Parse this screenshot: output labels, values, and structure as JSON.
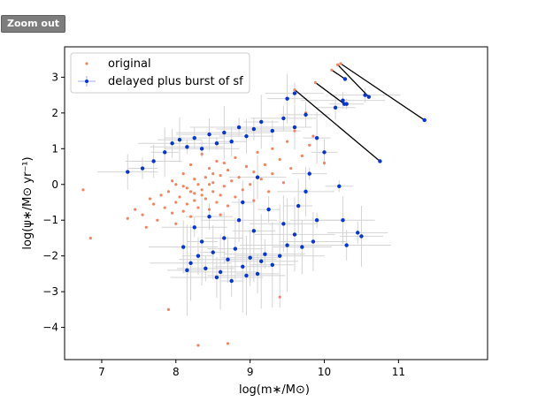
{
  "toolbar": {
    "zoom_out_label": "Zoom out"
  },
  "chart_data": {
    "type": "scatter",
    "xlabel": "log(m∗/M⊙)",
    "ylabel": "log(ψ∗/M⊙ yr⁻¹)",
    "xlim": [
      6.5,
      12.2
    ],
    "ylim": [
      -4.9,
      3.85
    ],
    "xticks": [
      7,
      8,
      9,
      10,
      11
    ],
    "yticks": [
      -4,
      -3,
      -2,
      -1,
      0,
      1,
      2,
      3
    ],
    "xtick_labels": [
      "7",
      "8",
      "9",
      "10",
      "11"
    ],
    "ytick_labels": [
      "−4",
      "−3",
      "−2",
      "−1",
      "0",
      "1",
      "2",
      "3"
    ],
    "grid": false,
    "legend_position": "top-left",
    "colors": {
      "original": "#f4845f",
      "delayed": "#0535d6",
      "errorbar": "#d4d4d4",
      "connector": "#000000"
    },
    "series": [
      {
        "name": "original",
        "points": [
          [
            6.75,
            -0.15
          ],
          [
            6.85,
            -1.5
          ],
          [
            7.35,
            -0.95
          ],
          [
            7.45,
            -0.7
          ],
          [
            7.55,
            -0.85
          ],
          [
            7.6,
            -1.2
          ],
          [
            7.65,
            -0.4
          ],
          [
            7.7,
            -0.55
          ],
          [
            7.75,
            -1.0
          ],
          [
            7.8,
            -0.3
          ],
          [
            7.85,
            -0.65
          ],
          [
            7.9,
            -0.2
          ],
          [
            7.95,
            -0.8
          ],
          [
            7.95,
            0.1
          ],
          [
            8.0,
            -0.5
          ],
          [
            8.0,
            -1.1
          ],
          [
            8.05,
            -0.35
          ],
          [
            8.1,
            0.3
          ],
          [
            8.1,
            -0.75
          ],
          [
            8.15,
            -0.1
          ],
          [
            8.15,
            -0.55
          ],
          [
            8.2,
            -0.9
          ],
          [
            8.2,
            0.55
          ],
          [
            8.25,
            -0.25
          ],
          [
            8.25,
            -0.45
          ],
          [
            8.3,
            0.0
          ],
          [
            8.3,
            -0.65
          ],
          [
            8.35,
            -0.15
          ],
          [
            8.35,
            0.85
          ],
          [
            8.4,
            -0.4
          ],
          [
            8.4,
            0.2
          ],
          [
            8.45,
            -0.7
          ],
          [
            8.45,
            0.45
          ],
          [
            8.5,
            -0.2
          ],
          [
            8.5,
            0.05
          ],
          [
            8.55,
            -0.5
          ],
          [
            8.55,
            0.65
          ],
          [
            8.6,
            -0.3
          ],
          [
            8.6,
            0.25
          ],
          [
            8.65,
            -0.05
          ],
          [
            8.7,
            0.4
          ],
          [
            8.7,
            -0.6
          ],
          [
            8.75,
            0.1
          ],
          [
            8.8,
            -0.35
          ],
          [
            8.8,
            0.75
          ],
          [
            8.85,
            0.2
          ],
          [
            8.9,
            -0.15
          ],
          [
            8.95,
            0.5
          ],
          [
            9.0,
            0.0
          ],
          [
            9.05,
            0.35
          ],
          [
            9.05,
            -0.45
          ],
          [
            9.1,
            0.9
          ],
          [
            9.15,
            0.15
          ],
          [
            9.2,
            0.55
          ],
          [
            9.25,
            -0.2
          ],
          [
            9.3,
            1.0
          ],
          [
            9.3,
            0.3
          ],
          [
            9.4,
            0.7
          ],
          [
            9.45,
            0.05
          ],
          [
            9.5,
            1.2
          ],
          [
            9.55,
            0.45
          ],
          [
            9.6,
            1.5
          ],
          [
            9.7,
            0.8
          ],
          [
            9.75,
            2.0
          ],
          [
            9.8,
            1.1
          ],
          [
            9.85,
            1.35
          ],
          [
            10.0,
            0.6
          ],
          [
            8.0,
            0.0
          ],
          [
            8.35,
            -0.3
          ],
          [
            8.6,
            -0.85
          ],
          [
            7.9,
            -3.5
          ],
          [
            8.3,
            -4.5
          ],
          [
            8.7,
            -4.45
          ],
          [
            9.4,
            -3.15
          ],
          [
            8.1,
            -0.05
          ],
          [
            8.45,
            0.0
          ],
          [
            8.2,
            -0.2
          ],
          [
            8.5,
            0.3
          ],
          [
            8.65,
            0.6
          ],
          [
            8.25,
            0.15
          ]
        ]
      },
      {
        "name": "delayed plus burst of sf",
        "points": [
          [
            7.35,
            0.35
          ],
          [
            7.55,
            0.45
          ],
          [
            7.7,
            0.65
          ],
          [
            7.85,
            0.9
          ],
          [
            7.95,
            1.15
          ],
          [
            8.05,
            1.25
          ],
          [
            8.15,
            1.05
          ],
          [
            8.25,
            1.3
          ],
          [
            8.35,
            1.0
          ],
          [
            8.45,
            1.4
          ],
          [
            8.55,
            1.15
          ],
          [
            8.65,
            1.45
          ],
          [
            8.75,
            1.2
          ],
          [
            8.85,
            1.6
          ],
          [
            8.95,
            1.35
          ],
          [
            9.05,
            1.55
          ],
          [
            9.15,
            1.75
          ],
          [
            9.3,
            1.5
          ],
          [
            9.45,
            1.85
          ],
          [
            9.6,
            1.6
          ],
          [
            9.75,
            1.95
          ],
          [
            9.9,
            1.3
          ],
          [
            9.5,
            2.4
          ],
          [
            9.6,
            2.55
          ],
          [
            8.1,
            -1.75
          ],
          [
            8.2,
            -2.2
          ],
          [
            8.3,
            -2.0
          ],
          [
            8.4,
            -2.35
          ],
          [
            8.5,
            -1.9
          ],
          [
            8.6,
            -2.45
          ],
          [
            8.7,
            -2.1
          ],
          [
            8.8,
            -1.8
          ],
          [
            8.9,
            -2.3
          ],
          [
            9.0,
            -2.05
          ],
          [
            9.1,
            -2.5
          ],
          [
            9.2,
            -1.95
          ],
          [
            9.3,
            -2.25
          ],
          [
            9.4,
            -2.0
          ],
          [
            9.5,
            -1.7
          ],
          [
            9.6,
            -1.4
          ],
          [
            8.25,
            -1.2
          ],
          [
            8.45,
            -0.9
          ],
          [
            8.65,
            -1.5
          ],
          [
            8.85,
            -1.0
          ],
          [
            9.05,
            -1.3
          ],
          [
            9.25,
            -0.7
          ],
          [
            9.45,
            -1.1
          ],
          [
            9.65,
            -0.6
          ],
          [
            9.75,
            -0.2
          ],
          [
            9.85,
            -1.6
          ],
          [
            8.35,
            -1.6
          ],
          [
            8.55,
            -2.6
          ],
          [
            8.75,
            -2.7
          ],
          [
            8.95,
            -2.55
          ],
          [
            9.15,
            -2.15
          ],
          [
            8.15,
            -2.4
          ],
          [
            9.8,
            0.3
          ],
          [
            10.2,
            -0.05
          ],
          [
            10.25,
            -1.0
          ],
          [
            10.3,
            -1.7
          ],
          [
            10.45,
            -1.35
          ],
          [
            10.5,
            -1.45
          ],
          [
            10.0,
            0.9
          ],
          [
            10.15,
            2.15
          ],
          [
            10.25,
            2.35
          ],
          [
            10.3,
            2.25
          ],
          [
            10.55,
            2.5
          ],
          [
            9.9,
            -1.0
          ],
          [
            9.7,
            -1.75
          ],
          [
            8.9,
            -0.5
          ],
          [
            9.1,
            0.2
          ]
        ]
      }
    ],
    "burst_pairs": [
      [
        9.6,
        2.65,
        10.75,
        0.65
      ],
      [
        9.88,
        2.85,
        10.27,
        2.25
      ],
      [
        10.1,
        3.2,
        10.28,
        2.95
      ],
      [
        10.18,
        3.35,
        10.6,
        2.45
      ],
      [
        10.22,
        3.38,
        11.35,
        1.8
      ]
    ]
  }
}
